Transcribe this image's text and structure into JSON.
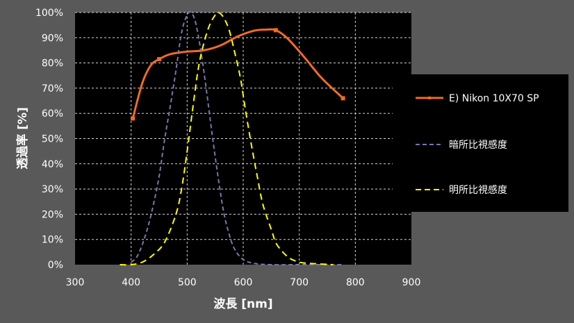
{
  "chart_data": {
    "type": "line",
    "xlabel": "波長 [nm]",
    "ylabel": "透過率 [%]",
    "xlim": [
      300,
      900
    ],
    "ylim": [
      0,
      100
    ],
    "xticks": [
      300,
      400,
      500,
      600,
      700,
      800,
      900
    ],
    "yticks": [
      0,
      10,
      20,
      30,
      40,
      50,
      60,
      70,
      80,
      90,
      100
    ],
    "x_tick_labels": [
      "300",
      "400",
      "500",
      "600",
      "700",
      "800",
      "900"
    ],
    "y_tick_labels": [
      "0%",
      "10%",
      "20%",
      "30%",
      "40%",
      "50%",
      "60%",
      "70%",
      "80%",
      "90%",
      "100%"
    ],
    "grid": true,
    "legend_position": "right",
    "series": [
      {
        "name": "E) Nikon 10X70 SP",
        "color": "#F26B21",
        "style": "solid-marker",
        "markers": [
          [
            403,
            58
          ],
          [
            450,
            81.5
          ],
          [
            658,
            93
          ],
          [
            778,
            66
          ]
        ],
        "curve": [
          [
            403,
            58
          ],
          [
            420,
            72
          ],
          [
            435,
            79
          ],
          [
            450,
            81.5
          ],
          [
            470,
            83.5
          ],
          [
            500,
            84.5
          ],
          [
            530,
            85
          ],
          [
            560,
            87
          ],
          [
            590,
            90.5
          ],
          [
            620,
            92.8
          ],
          [
            640,
            93.2
          ],
          [
            658,
            93
          ],
          [
            680,
            89.5
          ],
          [
            710,
            82
          ],
          [
            740,
            74
          ],
          [
            778,
            66
          ]
        ]
      },
      {
        "name": "暗所比視感度",
        "color": "#7F74AA",
        "style": "dashed",
        "curve": [
          [
            400,
            1
          ],
          [
            410,
            3
          ],
          [
            420,
            8
          ],
          [
            430,
            15
          ],
          [
            440,
            24
          ],
          [
            450,
            35
          ],
          [
            460,
            50
          ],
          [
            470,
            63
          ],
          [
            480,
            77
          ],
          [
            490,
            92
          ],
          [
            500,
            99
          ],
          [
            507,
            100
          ],
          [
            515,
            96
          ],
          [
            525,
            84
          ],
          [
            535,
            68
          ],
          [
            545,
            51
          ],
          [
            555,
            35
          ],
          [
            565,
            21
          ],
          [
            575,
            12
          ],
          [
            585,
            6
          ],
          [
            600,
            2
          ],
          [
            620,
            0.5
          ],
          [
            650,
            0
          ],
          [
            700,
            0
          ],
          [
            780,
            0
          ]
        ]
      },
      {
        "name": "明所比視感度",
        "color": "#FFFF00",
        "style": "dashed",
        "curve": [
          [
            380,
            0
          ],
          [
            400,
            0
          ],
          [
            420,
            1
          ],
          [
            440,
            4
          ],
          [
            460,
            9
          ],
          [
            480,
            20
          ],
          [
            490,
            30
          ],
          [
            500,
            45
          ],
          [
            510,
            62
          ],
          [
            520,
            78
          ],
          [
            530,
            88
          ],
          [
            540,
            95
          ],
          [
            550,
            99
          ],
          [
            556,
            100
          ],
          [
            565,
            98
          ],
          [
            575,
            93
          ],
          [
            585,
            84
          ],
          [
            595,
            74
          ],
          [
            605,
            60
          ],
          [
            615,
            47
          ],
          [
            625,
            35
          ],
          [
            635,
            24
          ],
          [
            650,
            14
          ],
          [
            660,
            8
          ],
          [
            680,
            3
          ],
          [
            700,
            1
          ],
          [
            720,
            0.5
          ],
          [
            760,
            0
          ]
        ]
      }
    ]
  }
}
